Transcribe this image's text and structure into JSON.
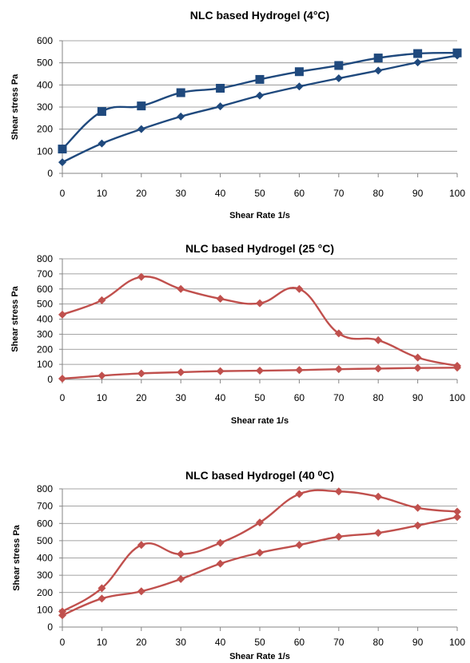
{
  "chart_data": [
    {
      "type": "line",
      "title": "NLC based Hydrogel (4°C)",
      "xlabel": "Shear Rate 1/s",
      "ylabel": "Shear stress Pa",
      "xlim": [
        0,
        100
      ],
      "ylim": [
        0,
        600
      ],
      "xticks": [
        0,
        10,
        20,
        30,
        40,
        50,
        60,
        70,
        80,
        90,
        100
      ],
      "yticks": [
        0,
        100,
        200,
        300,
        400,
        500,
        600
      ],
      "grid": "horizontal",
      "legend": "none",
      "series": [
        {
          "marker": "square",
          "color": "#1f497d",
          "smooth": true,
          "x": [
            0,
            10,
            20,
            30,
            40,
            50,
            60,
            70,
            80,
            90,
            100
          ],
          "y": [
            110,
            280,
            305,
            365,
            385,
            425,
            460,
            488,
            522,
            542,
            545
          ]
        },
        {
          "marker": "diamond",
          "color": "#1f497d",
          "smooth": true,
          "x": [
            0,
            10,
            20,
            30,
            40,
            50,
            60,
            70,
            80,
            90,
            100
          ],
          "y": [
            50,
            135,
            200,
            257,
            303,
            352,
            393,
            430,
            465,
            502,
            533
          ]
        }
      ]
    },
    {
      "type": "line",
      "title": "NLC based Hydrogel (25 °C)",
      "xlabel": "Shear rate 1/s",
      "ylabel": "Shear stress Pa",
      "xlim": [
        0,
        100
      ],
      "ylim": [
        0,
        800
      ],
      "xticks": [
        0,
        10,
        20,
        30,
        40,
        50,
        60,
        70,
        80,
        90,
        100
      ],
      "yticks": [
        0,
        100,
        200,
        300,
        400,
        500,
        600,
        700,
        800
      ],
      "grid": "horizontal",
      "legend": "none",
      "series": [
        {
          "marker": "diamond",
          "color": "#c0504d",
          "smooth": true,
          "x": [
            0,
            10,
            20,
            30,
            40,
            50,
            60,
            70,
            80,
            90,
            100
          ],
          "y": [
            430,
            525,
            680,
            600,
            535,
            505,
            600,
            305,
            260,
            145,
            90
          ]
        },
        {
          "marker": "diamond",
          "color": "#c0504d",
          "smooth": true,
          "x": [
            0,
            10,
            20,
            30,
            40,
            50,
            60,
            70,
            80,
            90,
            100
          ],
          "y": [
            5,
            25,
            40,
            48,
            55,
            58,
            62,
            68,
            72,
            76,
            78
          ]
        }
      ]
    },
    {
      "type": "line",
      "title": "NLC based Hydrogel (40 ⁰C)",
      "xlabel": "Shear Rate 1/s",
      "ylabel": "Shear stress Pa",
      "xlim": [
        0,
        100
      ],
      "ylim": [
        0,
        800
      ],
      "xticks": [
        0,
        10,
        20,
        30,
        40,
        50,
        60,
        70,
        80,
        90,
        100
      ],
      "yticks": [
        0,
        100,
        200,
        300,
        400,
        500,
        600,
        700,
        800
      ],
      "grid": "horizontal",
      "legend": "none",
      "series": [
        {
          "marker": "diamond",
          "color": "#c0504d",
          "smooth": true,
          "x": [
            0,
            10,
            20,
            30,
            40,
            50,
            60,
            70,
            80,
            90,
            100
          ],
          "y": [
            90,
            225,
            475,
            422,
            487,
            605,
            770,
            785,
            755,
            690,
            668
          ]
        },
        {
          "marker": "diamond",
          "color": "#c0504d",
          "smooth": true,
          "x": [
            0,
            10,
            20,
            30,
            40,
            50,
            60,
            70,
            80,
            90,
            100
          ],
          "y": [
            68,
            165,
            207,
            278,
            367,
            430,
            475,
            523,
            545,
            588,
            637
          ]
        }
      ]
    }
  ]
}
